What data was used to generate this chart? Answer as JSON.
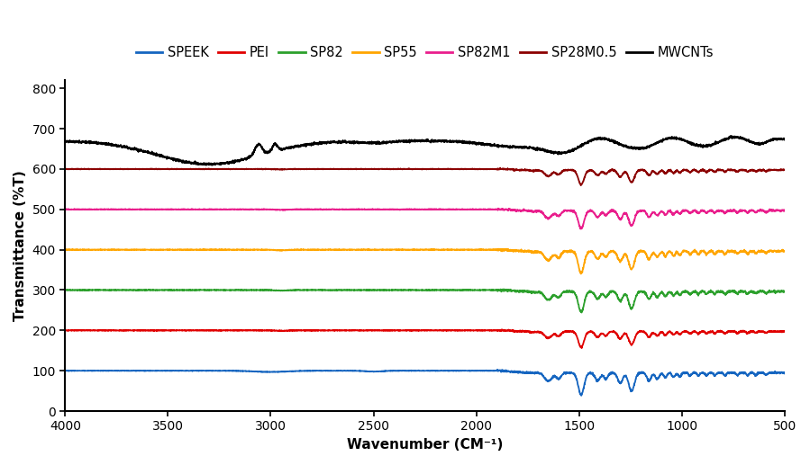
{
  "title": "",
  "xlabel": "Wavenumber (CM⁻¹)",
  "ylabel": "Transmittance (%T)",
  "xlim": [
    4000,
    500
  ],
  "ylim": [
    0,
    820
  ],
  "yticks": [
    0,
    100,
    200,
    300,
    400,
    500,
    600,
    700,
    800
  ],
  "xticks": [
    4000,
    3500,
    3000,
    2500,
    2000,
    1500,
    1000,
    500
  ],
  "series_colors": {
    "SPEEK": "#1565C0",
    "PEI": "#e00000",
    "SP82": "#2ca02c",
    "SP55": "#FFA500",
    "SP82M1": "#e91e8c",
    "SP28M0.5": "#8B0000",
    "MWCNTs": "#000000"
  },
  "baselines": {
    "SPEEK": 100,
    "PEI": 200,
    "SP82": 300,
    "SP55": 400,
    "SP82M1": 500,
    "SP28M0.5": 600,
    "MWCNTs": 670
  },
  "background_color": "#ffffff"
}
